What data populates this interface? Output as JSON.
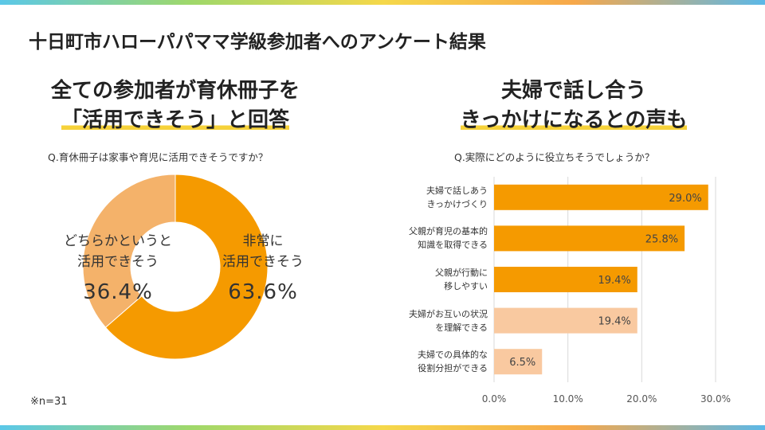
{
  "page_title": "十日町市ハローパパママ学級参加者へのアンケート結果",
  "left_panel": {
    "headline_line1": "全ての参加者が育休冊子を",
    "headline_line2": "「活用できそう」と回答",
    "question": "Q.育休冊子は家事や育児に活用できそうですか？",
    "note": "※n=31"
  },
  "right_panel": {
    "headline_line1": "夫婦で話し合う",
    "headline_line2": "きっかけになるとの声も",
    "question": "Q.実際にどのように役立ちそうでしょうか？"
  },
  "colors": {
    "primary": "#f59a00",
    "light": "#f4b26a",
    "pale": "#f9c9a0",
    "stripe_accent": "#f6d23a"
  },
  "chart_data": [
    {
      "type": "pie",
      "style": "donut",
      "categories": [
        "非常に活用できそう",
        "どちらかというと活用できそう"
      ],
      "label_lines": [
        [
          "非常に",
          "活用できそう"
        ],
        [
          "どちらかというと",
          "活用できそう"
        ]
      ],
      "values": [
        63.6,
        36.4
      ],
      "value_labels": [
        "63.6%",
        "36.4%"
      ],
      "colors": [
        "#f59a00",
        "#f4b26a"
      ]
    },
    {
      "type": "bar",
      "orientation": "horizontal",
      "categories": [
        [
          "夫婦で話しあう",
          "きっかけづくり"
        ],
        [
          "父親が育児の基本的",
          "知識を取得できる"
        ],
        [
          "父親が行動に",
          "移しやすい"
        ],
        [
          "夫婦がお互いの状況",
          "を理解できる"
        ],
        [
          "夫婦での具体的な",
          "役割分担ができる"
        ]
      ],
      "values": [
        29.0,
        25.8,
        19.4,
        19.4,
        6.5
      ],
      "value_labels": [
        "29.0%",
        "25.8%",
        "19.4%",
        "19.4%",
        "6.5%"
      ],
      "colors": [
        "#f59a00",
        "#f59a00",
        "#f59a00",
        "#f9c9a0",
        "#f9c9a0"
      ],
      "xlim": [
        0,
        30
      ],
      "xticks": [
        "0.0%",
        "10.0%",
        "20.0%",
        "30.0%"
      ],
      "grid": true
    }
  ]
}
